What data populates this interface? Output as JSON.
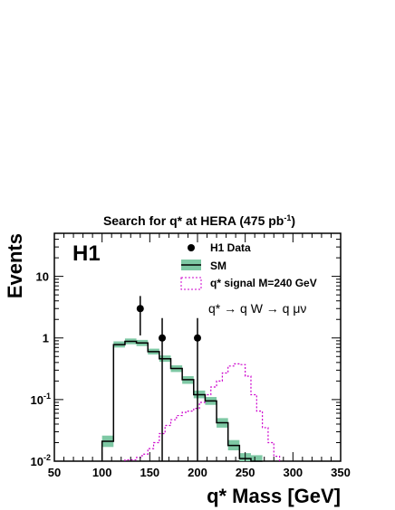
{
  "chart_data": {
    "type": "histogram",
    "title": "Search for q* at HERA (475 pb",
    "title_sup": "-1",
    "title_end": ")",
    "experiment_label": "H1",
    "xlabel": "q* Mass [GeV]",
    "ylabel": "Events",
    "xlim": [
      50,
      350
    ],
    "ylim": [
      0.01,
      50
    ],
    "y_scale": "log",
    "x_ticks": [
      "50",
      "100",
      "150",
      "200",
      "250",
      "300",
      "350"
    ],
    "y_ticks": [
      {
        "value": 0.01,
        "base": "10",
        "exp": "-2"
      },
      {
        "value": 0.1,
        "base": "10",
        "exp": "-1"
      },
      {
        "value": 1,
        "base": "1",
        "exp": ""
      },
      {
        "value": 10,
        "base": "10",
        "exp": ""
      }
    ],
    "legend": {
      "position": "top-right",
      "entries": [
        {
          "label": "H1 Data",
          "style": "marker"
        },
        {
          "label": "SM",
          "style": "band"
        },
        {
          "label": "q* signal M=240 GeV",
          "style": "dashed-box"
        }
      ]
    },
    "process_text": "q* → q W → q μν",
    "bin_width": 12,
    "series": [
      {
        "name": "SM",
        "bin_edges": [
          100,
          112,
          124,
          136,
          148,
          160,
          172,
          184,
          196,
          208,
          220,
          232,
          244,
          256,
          268
        ],
        "values": [
          0.021,
          0.78,
          0.88,
          0.83,
          0.6,
          0.46,
          0.32,
          0.21,
          0.12,
          0.095,
          0.042,
          0.018,
          0.011,
          0.01
        ],
        "band": [
          [
            0.017,
            0.026
          ],
          [
            0.7,
            0.88
          ],
          [
            0.79,
            0.98
          ],
          [
            0.74,
            0.93
          ],
          [
            0.54,
            0.67
          ],
          [
            0.41,
            0.52
          ],
          [
            0.28,
            0.36
          ],
          [
            0.18,
            0.24
          ],
          [
            0.105,
            0.14
          ],
          [
            0.082,
            0.11
          ],
          [
            0.035,
            0.05
          ],
          [
            0.015,
            0.022
          ],
          [
            0.009,
            0.0135
          ],
          [
            0.008,
            0.0125
          ]
        ]
      },
      {
        "name": "H1 Data",
        "points": [
          {
            "x": 140,
            "y": 3,
            "ylow": 1.1,
            "yhigh": 4.8
          },
          {
            "x": 163,
            "y": 1,
            "ylow": 0.01,
            "yhigh": 2.1
          },
          {
            "x": 200,
            "y": 1,
            "ylow": 0.01,
            "yhigh": 2.1
          }
        ]
      },
      {
        "name": "q* signal M=240 GeV",
        "bin_edges": [
          124,
          136,
          142,
          148,
          154,
          160,
          166,
          172,
          178,
          184,
          190,
          196,
          202,
          208,
          214,
          220,
          226,
          232,
          238,
          244,
          250,
          256,
          262,
          268,
          274,
          280,
          286
        ],
        "values": [
          0.0105,
          0.0115,
          0.013,
          0.016,
          0.02,
          0.028,
          0.038,
          0.047,
          0.055,
          0.062,
          0.065,
          0.072,
          0.09,
          0.12,
          0.16,
          0.2,
          0.27,
          0.35,
          0.38,
          0.37,
          0.24,
          0.12,
          0.065,
          0.035,
          0.02,
          0.012
        ]
      }
    ],
    "colors": {
      "sm_band": "#7ec8a4",
      "sm_line": "#000000",
      "signal": "#cc00cc",
      "data": "#000000"
    }
  }
}
